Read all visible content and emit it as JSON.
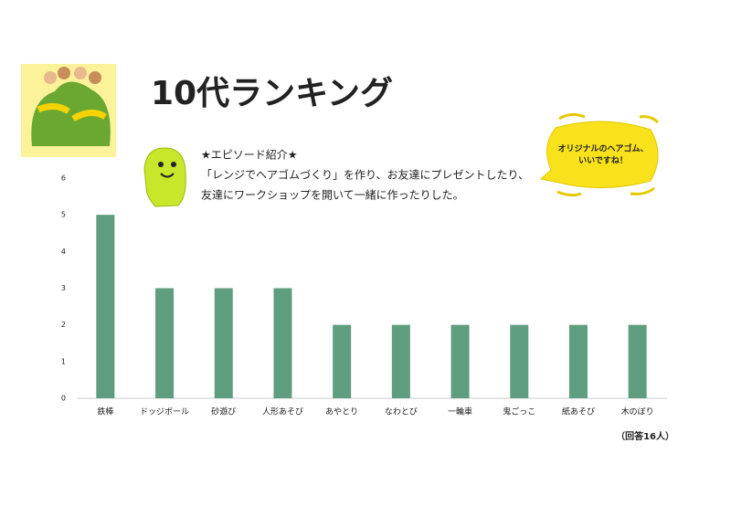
{
  "chart_data": {
    "type": "bar",
    "title": "10代ランキング",
    "categories": [
      "鉄棒",
      "ドッジボール",
      "砂遊び",
      "人形あそび",
      "あやとり",
      "なわとび",
      "一輪車",
      "鬼ごっこ",
      "紙あそび",
      "木のぼり"
    ],
    "values": [
      5,
      3,
      3,
      3,
      2,
      2,
      2,
      2,
      2,
      2
    ],
    "color": "#5e9d7d",
    "ylim": [
      0,
      6
    ],
    "yticks": [
      0,
      1,
      2,
      3,
      4,
      5,
      6
    ],
    "grid": false,
    "note": "（回答16人）"
  },
  "episode": {
    "heading": "★エピソード紹介★",
    "lines": [
      "「レンジでヘアゴムづくり」を作り、お友達にプレゼントしたり、",
      "友達にワークショップを開いて一緒に作ったりした。"
    ]
  },
  "bubble": {
    "lines": [
      "オリジナルのヘアゴム、",
      "いいですね！"
    ]
  }
}
